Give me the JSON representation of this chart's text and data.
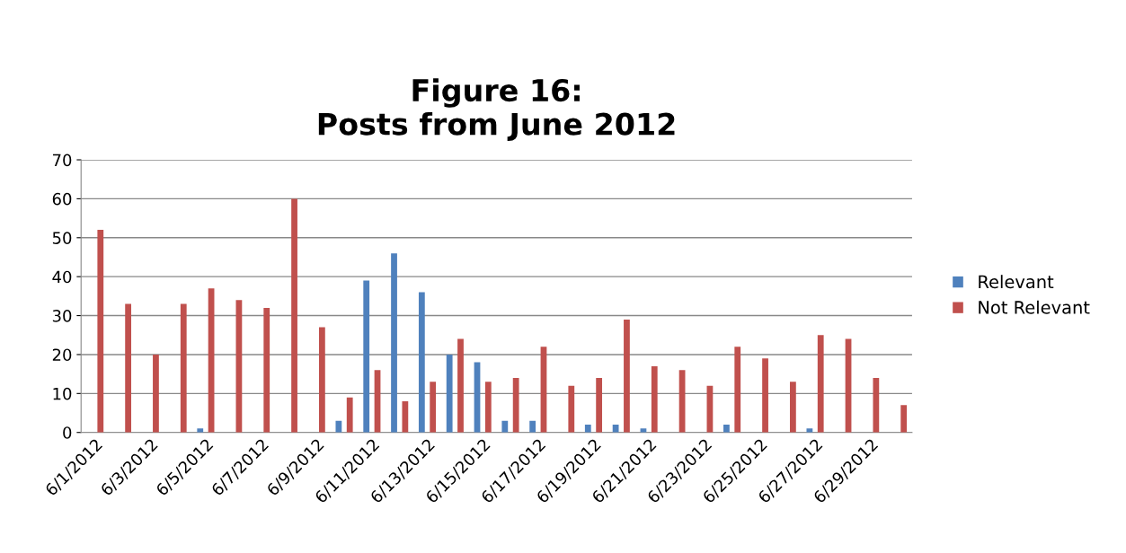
{
  "chart_data": {
    "type": "bar",
    "title": "Figure 16:\nPosts from June 2012",
    "categories": [
      "6/1/2012",
      null,
      "6/3/2012",
      null,
      "6/5/2012",
      null,
      "6/7/2012",
      null,
      "6/9/2012",
      null,
      "6/11/2012",
      null,
      "6/13/2012",
      null,
      "6/15/2012",
      null,
      "6/17/2012",
      null,
      "6/19/2012",
      null,
      "6/21/2012",
      null,
      "6/23/2012",
      null,
      "6/25/2012",
      null,
      "6/27/2012",
      null,
      "6/29/2012",
      null
    ],
    "series": [
      {
        "name": "Relevant",
        "color": "#4f81bd",
        "values": [
          0,
          0,
          0,
          0,
          1,
          0,
          0,
          0,
          0,
          3,
          39,
          46,
          36,
          20,
          18,
          3,
          3,
          0,
          2,
          2,
          1,
          0,
          0,
          2,
          0,
          0,
          1,
          0,
          0,
          0
        ]
      },
      {
        "name": "Not Relevant",
        "color": "#c0504d",
        "values": [
          52,
          33,
          20,
          33,
          37,
          34,
          32,
          60,
          27,
          9,
          16,
          8,
          13,
          24,
          13,
          14,
          22,
          12,
          14,
          29,
          17,
          16,
          12,
          22,
          19,
          13,
          25,
          24,
          14,
          7
        ]
      }
    ],
    "ylim": [
      0,
      70
    ],
    "yticks": [
      0,
      10,
      20,
      30,
      40,
      50,
      60,
      70
    ],
    "grid": "y",
    "legend": "right"
  }
}
